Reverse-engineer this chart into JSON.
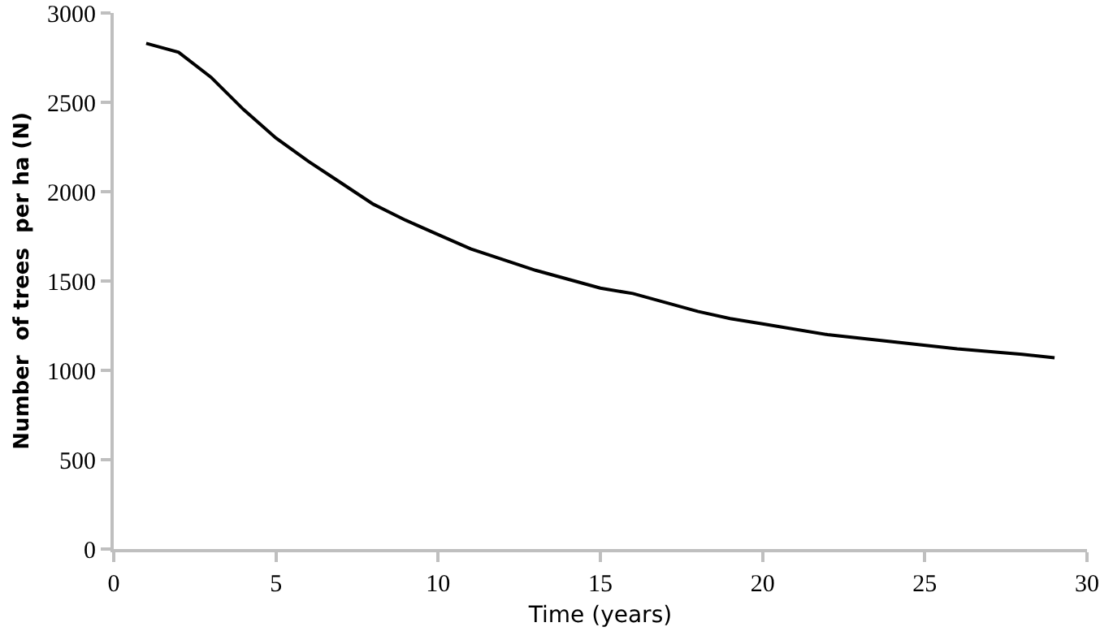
{
  "chart_data": {
    "type": "line",
    "xlabel": "Time (years)",
    "ylabel": "Number  of trees  per ha (N)",
    "x": [
      1,
      2,
      3,
      4,
      5,
      6,
      7,
      8,
      9,
      10,
      11,
      12,
      13,
      14,
      15,
      16,
      17,
      18,
      19,
      20,
      22,
      24,
      26,
      28,
      29
    ],
    "series": [
      {
        "color": "#000000",
        "values": [
          2830,
          2780,
          2640,
          2460,
          2300,
          2170,
          2050,
          1930,
          1840,
          1760,
          1680,
          1620,
          1560,
          1510,
          1460,
          1430,
          1380,
          1330,
          1290,
          1260,
          1200,
          1160,
          1120,
          1090,
          1070
        ]
      }
    ],
    "xlim": [
      0,
      30
    ],
    "xticks": [
      0,
      5,
      10,
      15,
      20,
      25,
      30
    ],
    "ylim": [
      0,
      3000
    ],
    "yticks": [
      0,
      500,
      1000,
      1500,
      2000,
      2500,
      3000
    ],
    "grid": false,
    "marker": "none",
    "line_style": "solid"
  }
}
